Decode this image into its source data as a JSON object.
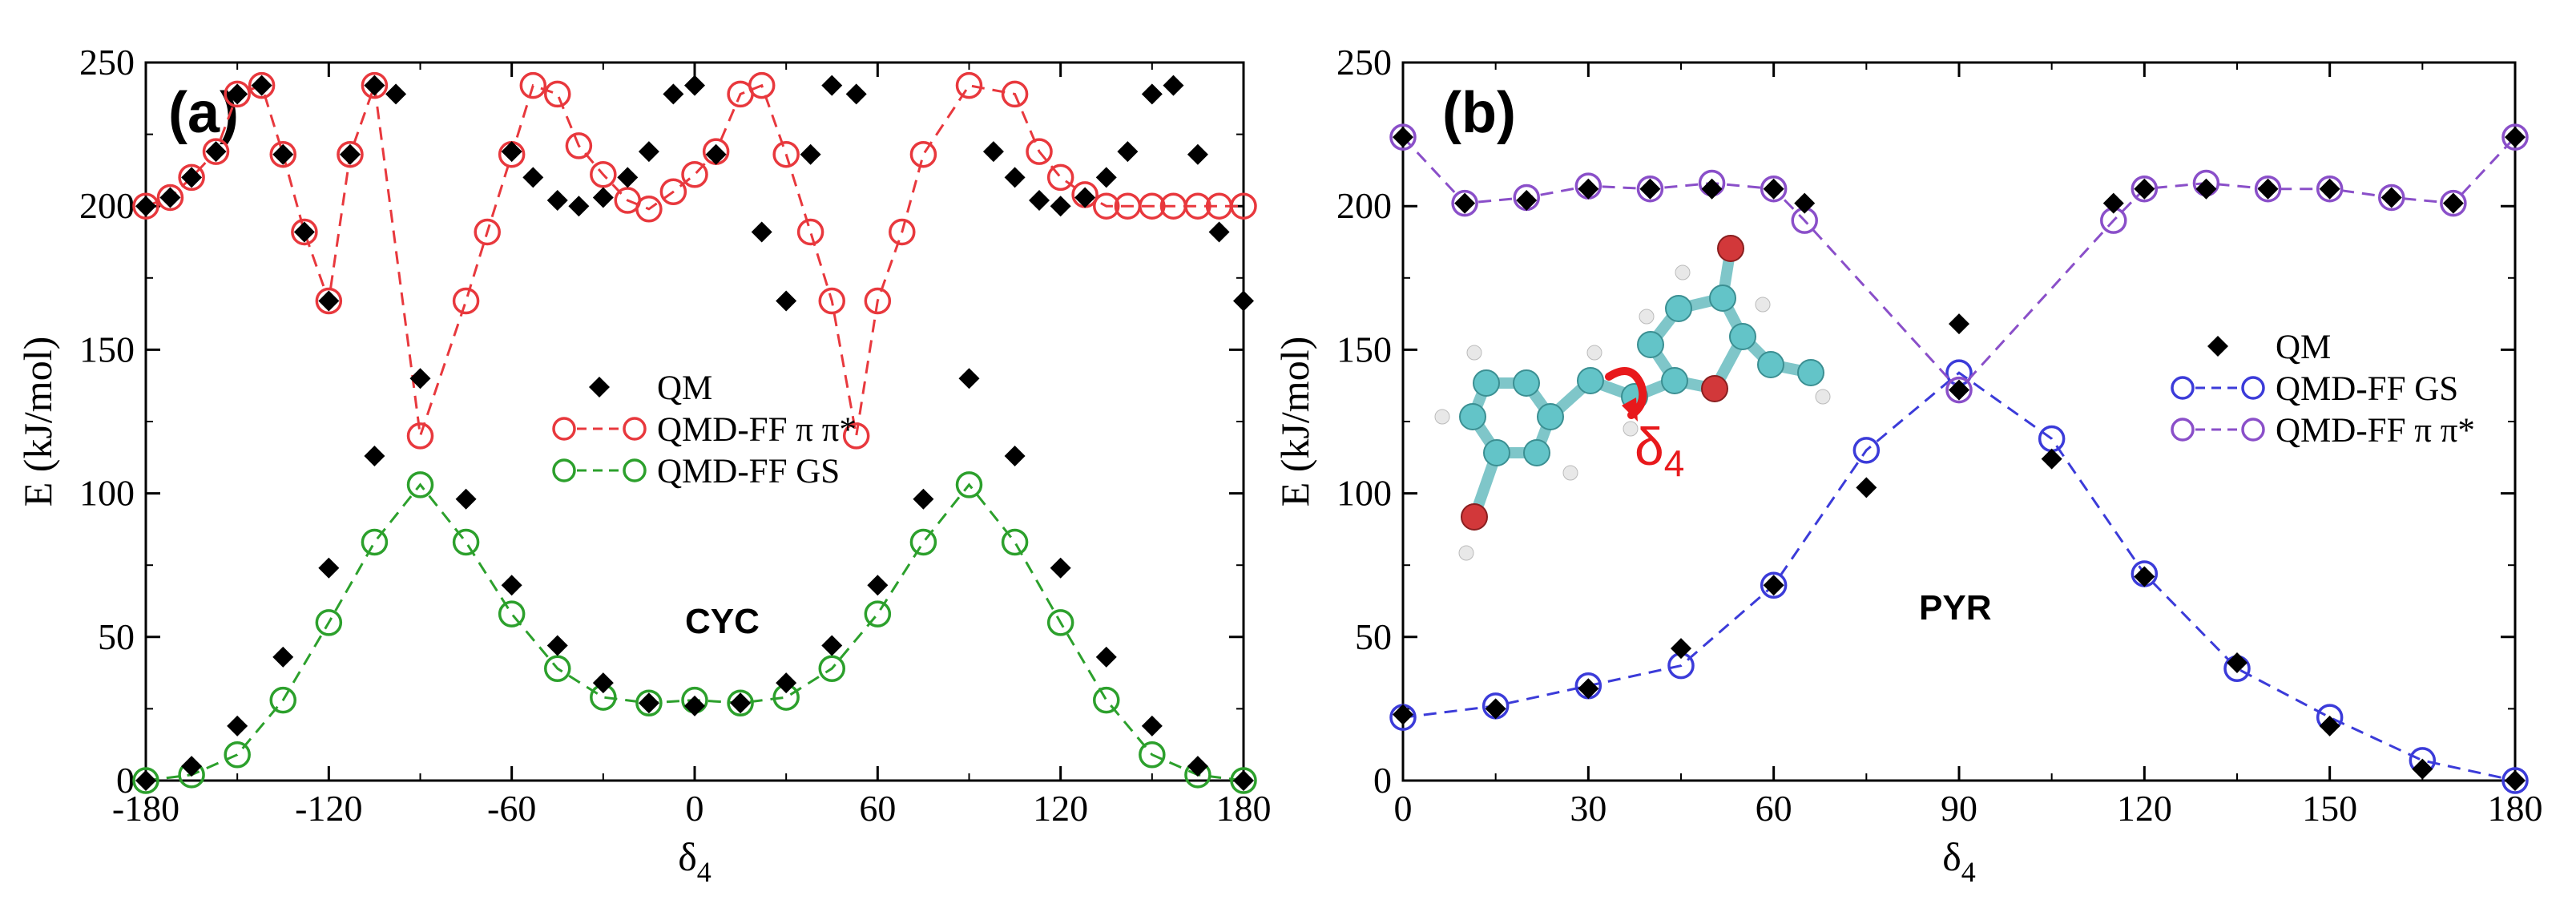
{
  "chart_data": [
    {
      "type": "line",
      "panel_label": "(a)",
      "annotation": "CYC",
      "xlabel": "δ",
      "xlabel_sub": "4",
      "ylabel": "E (kJ/mol)",
      "xlim": [
        -180,
        180
      ],
      "ylim": [
        0,
        250
      ],
      "xticks": [
        -180,
        -120,
        -60,
        0,
        60,
        120,
        180
      ],
      "xtick_labels": [
        "-180",
        "-120",
        "-60",
        "0",
        "60",
        "120",
        "180"
      ],
      "yticks": [
        0,
        50,
        100,
        150,
        200,
        250
      ],
      "ytick_labels": [
        "0",
        "50",
        "100",
        "150",
        "200",
        "250"
      ],
      "grid": false,
      "legend_position": "center",
      "series": [
        {
          "name": "QM",
          "style": "diamond",
          "color": "#000000",
          "x": [
            -180,
            -165,
            -150,
            -135,
            -120,
            -105,
            -90,
            -75,
            -60,
            -45,
            -30,
            -15,
            0,
            15,
            30,
            45,
            60,
            75,
            90,
            105,
            120,
            135,
            150,
            165,
            180,
            -180,
            -172,
            -165,
            -157,
            -150,
            -142,
            -135,
            -128,
            -120,
            -113,
            -105,
            -98,
            -60,
            -53,
            -45,
            -38,
            -30,
            -22,
            -15,
            -7,
            0,
            7,
            22,
            30,
            38,
            45,
            53,
            98,
            105,
            113,
            120,
            128,
            135,
            142,
            150,
            157,
            165,
            172,
            180
          ],
          "y": [
            0,
            5,
            19,
            43,
            74,
            113,
            140,
            98,
            68,
            47,
            34,
            27,
            26,
            27,
            34,
            47,
            68,
            98,
            140,
            113,
            74,
            43,
            19,
            5,
            0,
            200,
            203,
            210,
            219,
            239,
            242,
            218,
            191,
            167,
            218,
            242,
            239,
            219,
            210,
            202,
            200,
            203,
            210,
            219,
            239,
            242,
            218,
            191,
            167,
            218,
            242,
            239,
            219,
            210,
            202,
            200,
            203,
            210,
            219,
            239,
            242,
            218,
            191,
            167
          ]
        },
        {
          "name": "QMD-FF π π*",
          "style": "open-circle-dashed",
          "color": "#e8383d",
          "x": [
            -180,
            -172,
            -165,
            -157,
            -150,
            -142,
            -135,
            -128,
            -120,
            -113,
            -105,
            -90,
            -75,
            -68,
            -60,
            -53,
            -45,
            -38,
            -30,
            -22,
            -15,
            -7,
            0,
            7,
            15,
            22,
            30,
            38,
            45,
            53,
            60,
            68,
            75,
            90,
            105,
            113,
            120,
            128,
            135,
            142,
            150,
            157,
            165,
            172,
            180
          ],
          "y": [
            200,
            203,
            210,
            219,
            239,
            242,
            218,
            191,
            167,
            218,
            242,
            120,
            167,
            191,
            218,
            242,
            239,
            221,
            211,
            202,
            199,
            205,
            211,
            219,
            239,
            242,
            218,
            191,
            167,
            120,
            167,
            191,
            218,
            242,
            239,
            219,
            210,
            204,
            200,
            200,
            200,
            200,
            200,
            200,
            200
          ]
        },
        {
          "name": "QMD-FF GS",
          "style": "open-circle-dashed",
          "color": "#2ca02c",
          "x": [
            -180,
            -165,
            -150,
            -135,
            -120,
            -105,
            -90,
            -75,
            -60,
            -45,
            -30,
            -15,
            0,
            15,
            30,
            45,
            60,
            75,
            90,
            105,
            120,
            135,
            150,
            165,
            180
          ],
          "y": [
            0,
            2,
            9,
            28,
            55,
            83,
            103,
            83,
            58,
            39,
            29,
            27,
            28,
            27,
            29,
            39,
            58,
            83,
            103,
            83,
            55,
            28,
            9,
            2,
            0
          ]
        }
      ]
    },
    {
      "type": "line",
      "panel_label": "(b)",
      "annotation": "PYR",
      "xlabel": "δ",
      "xlabel_sub": "4",
      "ylabel": "E (kJ/mol)",
      "xlim": [
        0,
        180
      ],
      "ylim": [
        0,
        250
      ],
      "xticks": [
        0,
        30,
        60,
        90,
        120,
        150,
        180
      ],
      "xtick_labels": [
        "0",
        "30",
        "60",
        "90",
        "120",
        "150",
        "180"
      ],
      "yticks": [
        0,
        50,
        100,
        150,
        200,
        250
      ],
      "ytick_labels": [
        "0",
        "50",
        "100",
        "150",
        "200",
        "250"
      ],
      "grid": false,
      "legend_position": "right",
      "inset": {
        "description": "molecule",
        "delta_label": "δ",
        "delta_sub": "4"
      },
      "series": [
        {
          "name": "QM",
          "style": "diamond",
          "color": "#000000",
          "x": [
            0,
            15,
            30,
            45,
            60,
            75,
            90,
            105,
            120,
            135,
            150,
            165,
            180,
            0,
            10,
            20,
            30,
            40,
            50,
            60,
            65,
            90,
            115,
            120,
            130,
            140,
            150,
            160,
            170,
            180
          ],
          "y": [
            23,
            25,
            32,
            46,
            68,
            102,
            159,
            112,
            71,
            41,
            19,
            4,
            0,
            224,
            201,
            202,
            206,
            206,
            206,
            206,
            201,
            136,
            201,
            206,
            206,
            206,
            206,
            203,
            201,
            224
          ]
        },
        {
          "name": "QMD-FF GS",
          "style": "open-circle-dashed",
          "color": "#3b3bd9",
          "x": [
            0,
            15,
            30,
            45,
            60,
            75,
            90,
            105,
            120,
            135,
            150,
            165,
            180
          ],
          "y": [
            22,
            26,
            33,
            40,
            68,
            115,
            142,
            119,
            72,
            39,
            22,
            7,
            0
          ]
        },
        {
          "name": "QMD-FF π π*",
          "style": "open-circle-dashed",
          "color": "#8a4fc9",
          "x": [
            0,
            10,
            20,
            30,
            40,
            50,
            60,
            65,
            90,
            115,
            120,
            130,
            140,
            150,
            160,
            170,
            180
          ],
          "y": [
            224,
            201,
            203,
            207,
            206,
            208,
            206,
            195,
            136,
            195,
            206,
            208,
            206,
            206,
            203,
            201,
            224
          ]
        }
      ]
    }
  ]
}
